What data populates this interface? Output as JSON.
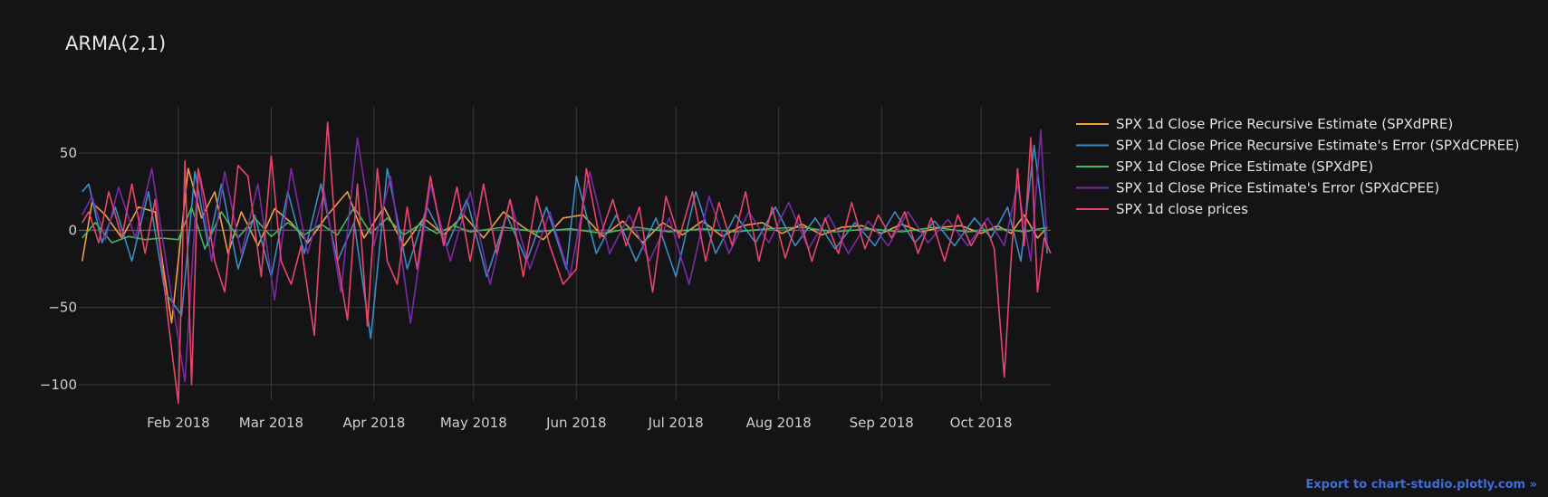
{
  "chart_data": {
    "type": "line",
    "title": "ARMA(2,1)",
    "xlabel": "",
    "ylabel": "",
    "xlim": [
      "2018-01-02",
      "2018-10-22"
    ],
    "ylim": [
      -110,
      80
    ],
    "grid": true,
    "legend_position": "right",
    "x_ticks": [
      {
        "date": "2018-02-01",
        "label": "Feb 2018"
      },
      {
        "date": "2018-03-01",
        "label": "Mar 2018"
      },
      {
        "date": "2018-04-01",
        "label": "Apr 2018"
      },
      {
        "date": "2018-05-01",
        "label": "May 2018"
      },
      {
        "date": "2018-06-01",
        "label": "Jun 2018"
      },
      {
        "date": "2018-07-01",
        "label": "Jul 2018"
      },
      {
        "date": "2018-08-01",
        "label": "Aug 2018"
      },
      {
        "date": "2018-09-01",
        "label": "Sep 2018"
      },
      {
        "date": "2018-10-01",
        "label": "Oct 2018"
      }
    ],
    "y_ticks": [
      {
        "value": 50,
        "label": "50"
      },
      {
        "value": 0,
        "label": "0"
      },
      {
        "value": -50,
        "label": "−50"
      },
      {
        "value": -100,
        "label": "−100"
      }
    ],
    "series": [
      {
        "name": "SPX 1d Close Price Recursive Estimate (SPXdPRE)",
        "color": "#f0a040",
        "x": [
          "2018-01-03",
          "2018-01-06",
          "2018-01-10",
          "2018-01-15",
          "2018-01-20",
          "2018-01-25",
          "2018-01-30",
          "2018-02-04",
          "2018-02-08",
          "2018-02-12",
          "2018-02-16",
          "2018-02-20",
          "2018-02-25",
          "2018-03-02",
          "2018-03-07",
          "2018-03-12",
          "2018-03-18",
          "2018-03-24",
          "2018-03-29",
          "2018-04-04",
          "2018-04-10",
          "2018-04-16",
          "2018-04-22",
          "2018-04-28",
          "2018-05-04",
          "2018-05-10",
          "2018-05-16",
          "2018-05-22",
          "2018-05-28",
          "2018-06-03",
          "2018-06-09",
          "2018-06-15",
          "2018-06-21",
          "2018-06-27",
          "2018-07-03",
          "2018-07-09",
          "2018-07-15",
          "2018-07-21",
          "2018-07-27",
          "2018-08-02",
          "2018-08-08",
          "2018-08-14",
          "2018-08-20",
          "2018-08-26",
          "2018-09-01",
          "2018-09-07",
          "2018-09-13",
          "2018-09-19",
          "2018-09-25",
          "2018-10-01",
          "2018-10-06",
          "2018-10-10",
          "2018-10-14",
          "2018-10-18",
          "2018-10-21"
        ],
        "values": [
          -20,
          18,
          10,
          -5,
          15,
          12,
          -60,
          40,
          8,
          25,
          -15,
          12,
          -10,
          14,
          5,
          -8,
          10,
          25,
          -5,
          15,
          -10,
          8,
          -3,
          10,
          -5,
          12,
          2,
          -6,
          8,
          10,
          -4,
          6,
          -8,
          5,
          -3,
          6,
          -4,
          3,
          5,
          -2,
          4,
          -3,
          2,
          3,
          -2,
          4,
          -1,
          2,
          3,
          -2,
          3,
          -2,
          10,
          -5,
          2
        ]
      },
      {
        "name": "SPX 1d Close Price Recursive Estimate's Error (SPXdCPREE)",
        "color": "#3b8bc4",
        "x": [
          "2018-01-03",
          "2018-01-05",
          "2018-01-09",
          "2018-01-13",
          "2018-01-18",
          "2018-01-23",
          "2018-01-28",
          "2018-02-02",
          "2018-02-06",
          "2018-02-10",
          "2018-02-14",
          "2018-02-19",
          "2018-02-24",
          "2018-03-01",
          "2018-03-06",
          "2018-03-11",
          "2018-03-16",
          "2018-03-21",
          "2018-03-26",
          "2018-03-31",
          "2018-04-05",
          "2018-04-11",
          "2018-04-17",
          "2018-04-23",
          "2018-04-29",
          "2018-05-05",
          "2018-05-11",
          "2018-05-17",
          "2018-05-23",
          "2018-05-29",
          "2018-06-01",
          "2018-06-07",
          "2018-06-13",
          "2018-06-19",
          "2018-06-25",
          "2018-07-01",
          "2018-07-07",
          "2018-07-13",
          "2018-07-19",
          "2018-07-25",
          "2018-07-31",
          "2018-08-06",
          "2018-08-12",
          "2018-08-18",
          "2018-08-24",
          "2018-08-30",
          "2018-09-05",
          "2018-09-11",
          "2018-09-17",
          "2018-09-23",
          "2018-09-29",
          "2018-10-04",
          "2018-10-09",
          "2018-10-13",
          "2018-10-17",
          "2018-10-21"
        ],
        "values": [
          25,
          30,
          -8,
          15,
          -20,
          25,
          -40,
          -55,
          38,
          -10,
          30,
          -25,
          10,
          -30,
          25,
          -15,
          30,
          -20,
          5,
          -70,
          40,
          -25,
          15,
          -10,
          20,
          -30,
          10,
          -20,
          15,
          -25,
          35,
          -15,
          10,
          -20,
          8,
          -30,
          25,
          -15,
          10,
          -8,
          15,
          -10,
          8,
          -12,
          5,
          -10,
          12,
          -8,
          6,
          -10,
          8,
          -5,
          15,
          -20,
          55,
          -15
        ]
      },
      {
        "name": "SPX 1d Close Price Estimate (SPXdPE)",
        "color": "#3dbb62",
        "x": [
          "2018-01-03",
          "2018-01-07",
          "2018-01-12",
          "2018-01-17",
          "2018-01-22",
          "2018-01-27",
          "2018-02-01",
          "2018-02-05",
          "2018-02-09",
          "2018-02-14",
          "2018-02-19",
          "2018-02-24",
          "2018-03-01",
          "2018-03-06",
          "2018-03-11",
          "2018-03-16",
          "2018-03-21",
          "2018-03-26",
          "2018-03-31",
          "2018-04-05",
          "2018-04-10",
          "2018-04-15",
          "2018-04-20",
          "2018-04-25",
          "2018-04-30",
          "2018-05-10",
          "2018-05-20",
          "2018-05-30",
          "2018-06-09",
          "2018-06-19",
          "2018-06-29",
          "2018-07-09",
          "2018-07-19",
          "2018-07-29",
          "2018-08-08",
          "2018-08-18",
          "2018-08-28",
          "2018-09-07",
          "2018-09-17",
          "2018-09-27",
          "2018-10-07",
          "2018-10-14",
          "2018-10-21"
        ],
        "values": [
          -5,
          5,
          -8,
          -4,
          -6,
          -5,
          -6,
          15,
          -12,
          12,
          -5,
          8,
          -4,
          5,
          -3,
          4,
          -3,
          15,
          -2,
          8,
          -3,
          4,
          -2,
          3,
          -1,
          2,
          -1,
          1,
          -2,
          2,
          -1,
          1,
          -1,
          1,
          2,
          -1,
          1,
          -1,
          2,
          -1,
          1,
          -1,
          2
        ]
      },
      {
        "name": "SPX 1d Close Price Estimate's Error (SPXdCPEE)",
        "color": "#7a2aa6",
        "x": [
          "2018-01-03",
          "2018-01-06",
          "2018-01-10",
          "2018-01-14",
          "2018-01-19",
          "2018-01-24",
          "2018-01-29",
          "2018-02-03",
          "2018-02-07",
          "2018-02-11",
          "2018-02-15",
          "2018-02-20",
          "2018-02-25",
          "2018-03-02",
          "2018-03-07",
          "2018-03-12",
          "2018-03-17",
          "2018-03-22",
          "2018-03-27",
          "2018-04-01",
          "2018-04-06",
          "2018-04-12",
          "2018-04-18",
          "2018-04-24",
          "2018-04-30",
          "2018-05-06",
          "2018-05-12",
          "2018-05-18",
          "2018-05-24",
          "2018-05-30",
          "2018-06-05",
          "2018-06-11",
          "2018-06-17",
          "2018-06-23",
          "2018-06-29",
          "2018-07-05",
          "2018-07-11",
          "2018-07-17",
          "2018-07-23",
          "2018-07-29",
          "2018-08-04",
          "2018-08-10",
          "2018-08-16",
          "2018-08-22",
          "2018-08-28",
          "2018-09-03",
          "2018-09-09",
          "2018-09-15",
          "2018-09-21",
          "2018-09-27",
          "2018-10-03",
          "2018-10-08",
          "2018-10-12",
          "2018-10-16",
          "2018-10-19",
          "2018-10-21"
        ],
        "values": [
          10,
          22,
          -6,
          28,
          -5,
          40,
          -30,
          -98,
          40,
          -20,
          38,
          -15,
          30,
          -45,
          40,
          -15,
          25,
          -40,
          60,
          -10,
          35,
          -60,
          30,
          -20,
          25,
          -35,
          20,
          -25,
          12,
          -30,
          38,
          -15,
          10,
          -20,
          8,
          -35,
          22,
          -15,
          12,
          -8,
          18,
          -12,
          10,
          -15,
          6,
          -10,
          12,
          -8,
          7,
          -10,
          8,
          -10,
          30,
          -20,
          65,
          -12
        ]
      },
      {
        "name": "SPX 1d close prices",
        "color": "#e8456a",
        "x": [
          "2018-01-03",
          "2018-01-05",
          "2018-01-08",
          "2018-01-11",
          "2018-01-15",
          "2018-01-18",
          "2018-01-22",
          "2018-01-25",
          "2018-01-29",
          "2018-02-01",
          "2018-02-03",
          "2018-02-05",
          "2018-02-07",
          "2018-02-09",
          "2018-02-12",
          "2018-02-15",
          "2018-02-19",
          "2018-02-22",
          "2018-02-26",
          "2018-03-01",
          "2018-03-04",
          "2018-03-07",
          "2018-03-10",
          "2018-03-14",
          "2018-03-18",
          "2018-03-21",
          "2018-03-24",
          "2018-03-27",
          "2018-03-30",
          "2018-04-02",
          "2018-04-05",
          "2018-04-08",
          "2018-04-11",
          "2018-04-14",
          "2018-04-18",
          "2018-04-22",
          "2018-04-26",
          "2018-04-30",
          "2018-05-04",
          "2018-05-08",
          "2018-05-12",
          "2018-05-16",
          "2018-05-20",
          "2018-05-24",
          "2018-05-28",
          "2018-06-01",
          "2018-06-04",
          "2018-06-08",
          "2018-06-12",
          "2018-06-16",
          "2018-06-20",
          "2018-06-24",
          "2018-06-28",
          "2018-07-02",
          "2018-07-06",
          "2018-07-10",
          "2018-07-14",
          "2018-07-18",
          "2018-07-22",
          "2018-07-26",
          "2018-07-30",
          "2018-08-03",
          "2018-08-07",
          "2018-08-11",
          "2018-08-15",
          "2018-08-19",
          "2018-08-23",
          "2018-08-27",
          "2018-08-31",
          "2018-09-04",
          "2018-09-08",
          "2018-09-12",
          "2018-09-16",
          "2018-09-20",
          "2018-09-24",
          "2018-09-28",
          "2018-10-02",
          "2018-10-05",
          "2018-10-08",
          "2018-10-10",
          "2018-10-12",
          "2018-10-14",
          "2018-10-16",
          "2018-10-18",
          "2018-10-20",
          "2018-10-22"
        ],
        "values": [
          5,
          12,
          -8,
          25,
          -5,
          30,
          -15,
          20,
          -60,
          -112,
          45,
          -100,
          40,
          20,
          -20,
          -40,
          42,
          35,
          -30,
          48,
          -20,
          -35,
          -10,
          -68,
          70,
          -20,
          -58,
          30,
          -62,
          40,
          -20,
          -35,
          15,
          -25,
          35,
          -10,
          28,
          -20,
          30,
          -15,
          20,
          -30,
          22,
          -10,
          -35,
          -25,
          40,
          -5,
          20,
          -10,
          15,
          -40,
          22,
          -5,
          25,
          -20,
          18,
          -10,
          25,
          -20,
          15,
          -18,
          10,
          -20,
          8,
          -15,
          18,
          -12,
          10,
          -5,
          12,
          -15,
          8,
          -20,
          10,
          -10,
          5,
          -12,
          -95,
          -20,
          40,
          -10,
          60,
          -40,
          -5,
          -15
        ]
      }
    ]
  },
  "export_link": "Export to chart-studio.plotly.com »"
}
